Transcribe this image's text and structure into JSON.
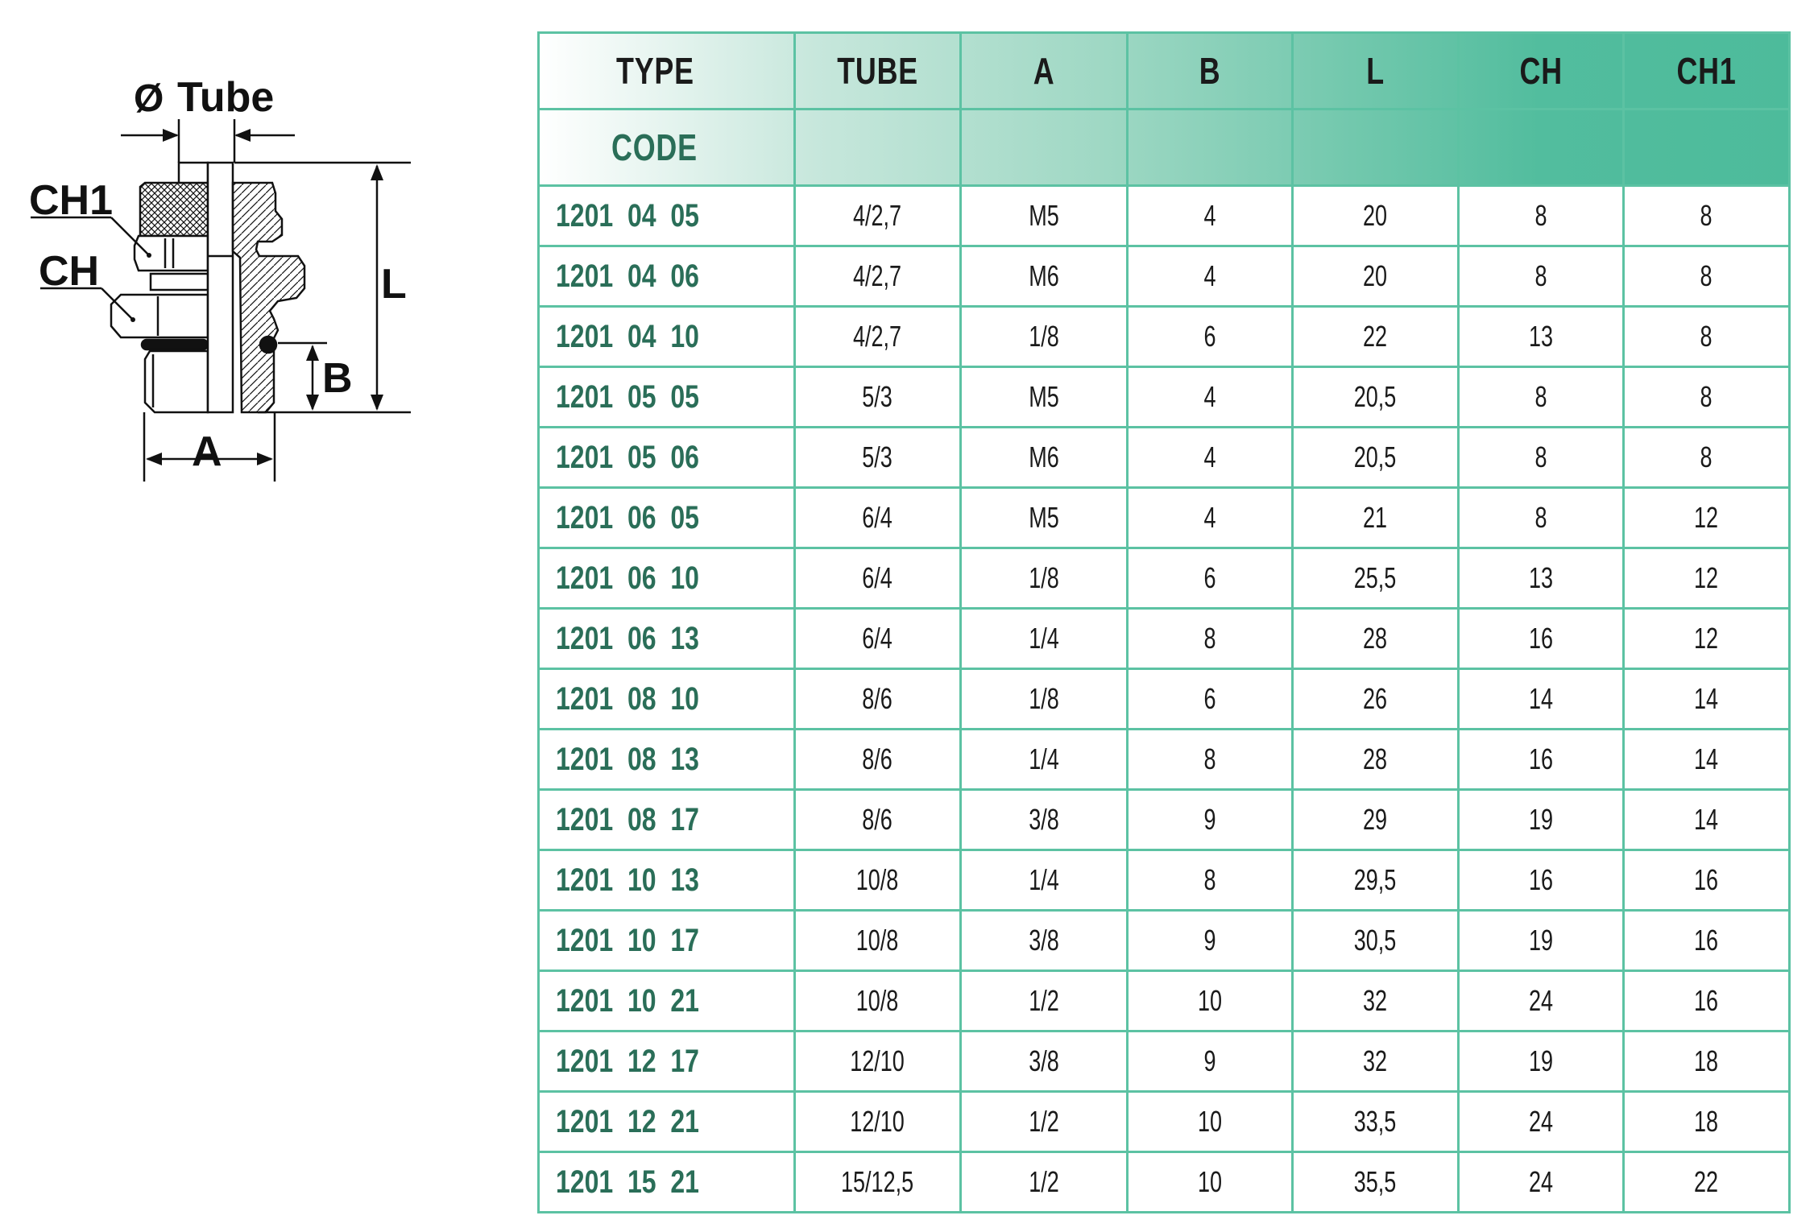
{
  "diagram": {
    "labels": {
      "tube": "Tube",
      "diameter_symbol": "Ø",
      "ch1": "CH1",
      "ch": "CH",
      "l": "L",
      "b": "B",
      "a": "A"
    }
  },
  "table": {
    "header": {
      "type": "TYPE",
      "code": "CODE",
      "columns": [
        "TUBE",
        "A",
        "B",
        "L",
        "CH",
        "CH1"
      ]
    },
    "colors": {
      "border": "#5cc2a3",
      "code_text": "#2a6e58",
      "header_gradient_end": "#4dbb9b"
    },
    "rows": [
      {
        "code": "1201  04  05",
        "tube": "4/2,7",
        "a": "M5",
        "b": "4",
        "l": "20",
        "ch": "8",
        "ch1": "8"
      },
      {
        "code": "1201  04  06",
        "tube": "4/2,7",
        "a": "M6",
        "b": "4",
        "l": "20",
        "ch": "8",
        "ch1": "8"
      },
      {
        "code": "1201  04  10",
        "tube": "4/2,7",
        "a": "1/8",
        "b": "6",
        "l": "22",
        "ch": "13",
        "ch1": "8"
      },
      {
        "code": "1201  05  05",
        "tube": "5/3",
        "a": "M5",
        "b": "4",
        "l": "20,5",
        "ch": "8",
        "ch1": "8"
      },
      {
        "code": "1201  05  06",
        "tube": "5/3",
        "a": "M6",
        "b": "4",
        "l": "20,5",
        "ch": "8",
        "ch1": "8"
      },
      {
        "code": "1201  06  05",
        "tube": "6/4",
        "a": "M5",
        "b": "4",
        "l": "21",
        "ch": "8",
        "ch1": "12"
      },
      {
        "code": "1201  06  10",
        "tube": "6/4",
        "a": "1/8",
        "b": "6",
        "l": "25,5",
        "ch": "13",
        "ch1": "12"
      },
      {
        "code": "1201  06  13",
        "tube": "6/4",
        "a": "1/4",
        "b": "8",
        "l": "28",
        "ch": "16",
        "ch1": "12"
      },
      {
        "code": "1201  08  10",
        "tube": "8/6",
        "a": "1/8",
        "b": "6",
        "l": "26",
        "ch": "14",
        "ch1": "14"
      },
      {
        "code": "1201  08  13",
        "tube": "8/6",
        "a": "1/4",
        "b": "8",
        "l": "28",
        "ch": "16",
        "ch1": "14"
      },
      {
        "code": "1201  08  17",
        "tube": "8/6",
        "a": "3/8",
        "b": "9",
        "l": "29",
        "ch": "19",
        "ch1": "14"
      },
      {
        "code": "1201  10  13",
        "tube": "10/8",
        "a": "1/4",
        "b": "8",
        "l": "29,5",
        "ch": "16",
        "ch1": "16"
      },
      {
        "code": "1201  10  17",
        "tube": "10/8",
        "a": "3/8",
        "b": "9",
        "l": "30,5",
        "ch": "19",
        "ch1": "16"
      },
      {
        "code": "1201  10  21",
        "tube": "10/8",
        "a": "1/2",
        "b": "10",
        "l": "32",
        "ch": "24",
        "ch1": "16"
      },
      {
        "code": "1201  12  17",
        "tube": "12/10",
        "a": "3/8",
        "b": "9",
        "l": "32",
        "ch": "19",
        "ch1": "18"
      },
      {
        "code": "1201  12  21",
        "tube": "12/10",
        "a": "1/2",
        "b": "10",
        "l": "33,5",
        "ch": "24",
        "ch1": "18"
      },
      {
        "code": "1201  15  21",
        "tube": "15/12,5",
        "a": "1/2",
        "b": "10",
        "l": "35,5",
        "ch": "24",
        "ch1": "22"
      }
    ]
  }
}
